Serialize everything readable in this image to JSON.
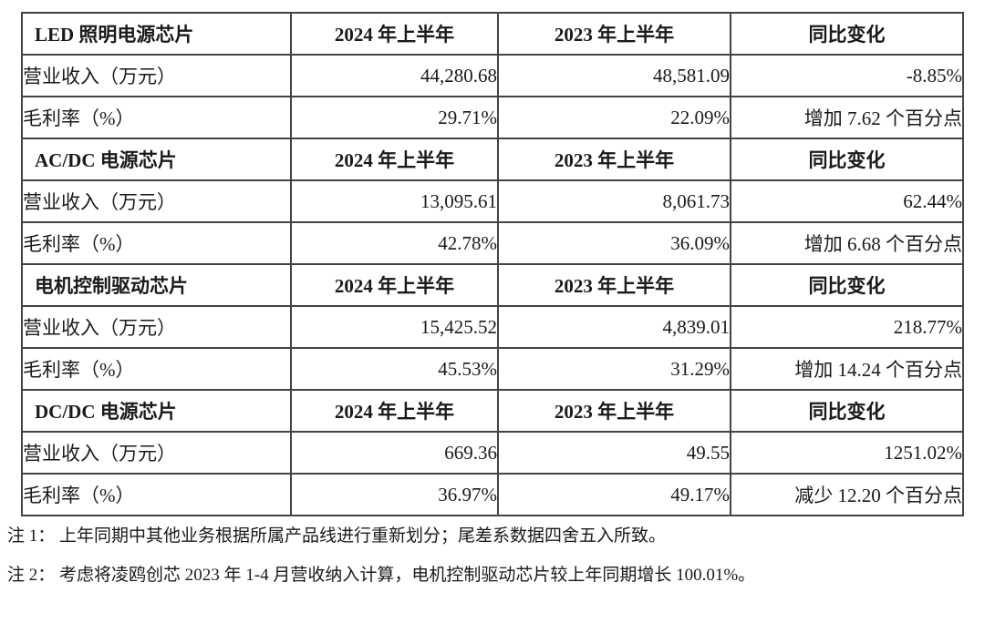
{
  "table": {
    "headers": {
      "h2024": "2024 年上半年",
      "h2023": "2023 年上半年",
      "hyoy": "同比变化"
    },
    "sections": [
      {
        "title": "LED 照明电源芯片",
        "rows": [
          {
            "label": "营业收入（万元）",
            "v2024": "44,280.68",
            "v2023": "48,581.09",
            "yoy": "-8.85%"
          },
          {
            "label": "毛利率（%）",
            "v2024": "29.71%",
            "v2023": "22.09%",
            "yoy": "增加 7.62 个百分点"
          }
        ]
      },
      {
        "title": "AC/DC 电源芯片",
        "rows": [
          {
            "label": "营业收入（万元）",
            "v2024": "13,095.61",
            "v2023": "8,061.73",
            "yoy": "62.44%"
          },
          {
            "label": "毛利率（%）",
            "v2024": "42.78%",
            "v2023": "36.09%",
            "yoy": "增加 6.68 个百分点"
          }
        ]
      },
      {
        "title": "电机控制驱动芯片",
        "rows": [
          {
            "label": "营业收入（万元）",
            "v2024": "15,425.52",
            "v2023": "4,839.01",
            "yoy": "218.77%"
          },
          {
            "label": "毛利率（%）",
            "v2024": "45.53%",
            "v2023": "31.29%",
            "yoy": "增加 14.24 个百分点"
          }
        ]
      },
      {
        "title": "DC/DC 电源芯片",
        "rows": [
          {
            "label": "营业收入（万元）",
            "v2024": "669.36",
            "v2023": "49.55",
            "yoy": "1251.02%"
          },
          {
            "label": "毛利率（%）",
            "v2024": "36.97%",
            "v2023": "49.17%",
            "yoy": "减少 12.20 个百分点"
          }
        ]
      }
    ]
  },
  "notes": [
    {
      "text": "注 1： 上年同期中其他业务根据所属产品线进行重新划分；尾差系数据四舍五入所致。"
    },
    {
      "text": "注 2： 考虑将凌鸥创芯 2023 年 1-4 月营收纳入计算，电机控制驱动芯片较上年同期增长 100.01%。"
    }
  ]
}
